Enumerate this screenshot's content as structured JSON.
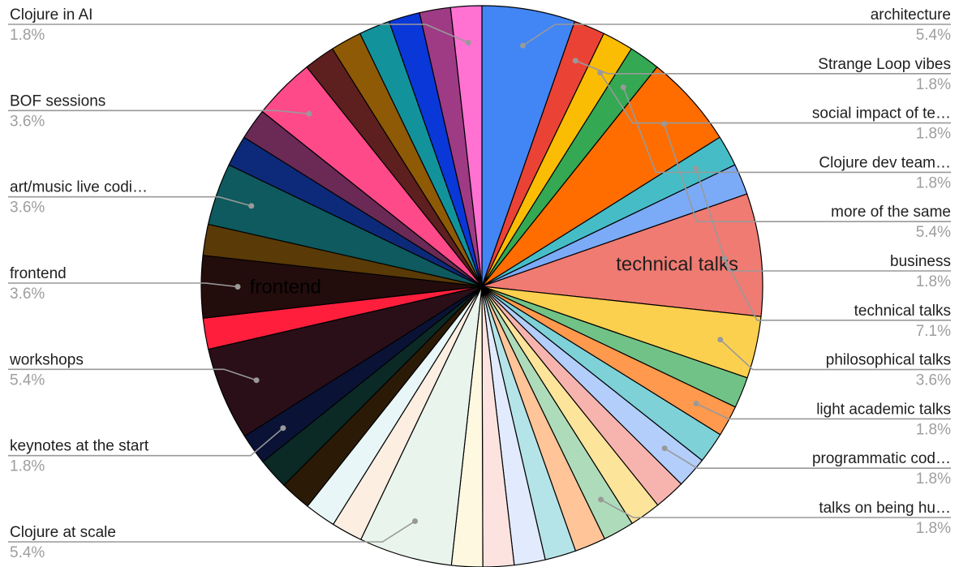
{
  "chart_data": {
    "type": "pie",
    "title": "",
    "slices": [
      {
        "label": "architecture",
        "value": 5.4,
        "display": "5.4%",
        "color": "#4285f4"
      },
      {
        "label": "Strange Loop vibes",
        "value": 1.8,
        "display": "1.8%",
        "color": "#ea4335"
      },
      {
        "label": "social impact of te…",
        "value": 1.8,
        "display": "1.8%",
        "color": "#fbbc04"
      },
      {
        "label": "Clojure dev team…",
        "value": 1.8,
        "display": "1.8%",
        "color": "#34a853"
      },
      {
        "label": "more of the same",
        "value": 5.4,
        "display": "5.4%",
        "color": "#ff6d01"
      },
      {
        "label": "business",
        "value": 1.8,
        "display": "1.8%",
        "color": "#46bdc6"
      },
      {
        "label": "",
        "value": 1.8,
        "display": "",
        "color": "#7baaf7"
      },
      {
        "label": "technical talks",
        "value": 7.1,
        "display": "7.1%",
        "color": "#f07b72"
      },
      {
        "label": "philosophical talks",
        "value": 3.6,
        "display": "3.6%",
        "color": "#fcd04f"
      },
      {
        "label": "",
        "value": 1.8,
        "display": "",
        "color": "#71c287"
      },
      {
        "label": "light academic talks",
        "value": 1.8,
        "display": "1.8%",
        "color": "#ff994d"
      },
      {
        "label": "",
        "value": 1.8,
        "display": "",
        "color": "#7ed1d7"
      },
      {
        "label": "programmatic cod…",
        "value": 1.8,
        "display": "1.8%",
        "color": "#b3cefb"
      },
      {
        "label": "",
        "value": 1.8,
        "display": "",
        "color": "#f7b4ae"
      },
      {
        "label": "",
        "value": 1.8,
        "display": "",
        "color": "#fde49b"
      },
      {
        "label": "talks on being hu…",
        "value": 1.8,
        "display": "1.8%",
        "color": "#aedcba"
      },
      {
        "label": "",
        "value": 1.8,
        "display": "",
        "color": "#ffc599"
      },
      {
        "label": "",
        "value": 1.8,
        "display": "",
        "color": "#b5e4e8"
      },
      {
        "label": "",
        "value": 1.8,
        "display": "",
        "color": "#e1ebfd"
      },
      {
        "label": "",
        "value": 1.8,
        "display": "",
        "color": "#fde3e0"
      },
      {
        "label": "",
        "value": 1.8,
        "display": "",
        "color": "#fff8e1"
      },
      {
        "label": "Clojure at scale",
        "value": 5.4,
        "display": "5.4%",
        "color": "#e8f4ec"
      },
      {
        "label": "",
        "value": 1.8,
        "display": "",
        "color": "#fdeee2"
      },
      {
        "label": "",
        "value": 1.8,
        "display": "",
        "color": "#e8f6f7"
      },
      {
        "label": "",
        "value": 1.8,
        "display": "",
        "color": "#2b1a06"
      },
      {
        "label": "",
        "value": 1.8,
        "display": "",
        "color": "#0b2a26"
      },
      {
        "label": "keynotes at the start",
        "value": 1.8,
        "display": "1.8%",
        "color": "#0a1336"
      },
      {
        "label": "workshops",
        "value": 5.4,
        "display": "5.4%",
        "color": "#2a0f18"
      },
      {
        "label": "",
        "value": 1.8,
        "display": "",
        "color": "#ff1f3d"
      },
      {
        "label": "frontend",
        "value": 3.6,
        "display": "3.6%",
        "color": "#230c0c"
      },
      {
        "label": "",
        "value": 1.8,
        "display": "",
        "color": "#5a3a06"
      },
      {
        "label": "art/music live codi…",
        "value": 3.6,
        "display": "3.6%",
        "color": "#0e5a5e"
      },
      {
        "label": "",
        "value": 1.8,
        "display": "",
        "color": "#0d2a7a"
      },
      {
        "label": "",
        "value": 1.8,
        "display": "",
        "color": "#6a2a55"
      },
      {
        "label": "BOF sessions",
        "value": 3.6,
        "display": "3.6%",
        "color": "#ff4a8a"
      },
      {
        "label": "",
        "value": 1.8,
        "display": "",
        "color": "#5e1f1f"
      },
      {
        "label": "",
        "value": 1.8,
        "display": "",
        "color": "#8e5a06"
      },
      {
        "label": "",
        "value": 1.8,
        "display": "",
        "color": "#12939b"
      },
      {
        "label": "",
        "value": 1.8,
        "display": "",
        "color": "#0a37d8"
      },
      {
        "label": "",
        "value": 1.8,
        "display": "",
        "color": "#9e3b84"
      },
      {
        "label": "Clojure in AI",
        "value": 1.8,
        "display": "1.8%",
        "color": "#ff72d2"
      }
    ],
    "inside_labels": [
      {
        "slice": "technical talks",
        "text": "technical talks"
      },
      {
        "slice": "frontend",
        "text": "frontend"
      }
    ],
    "legend": "none"
  }
}
